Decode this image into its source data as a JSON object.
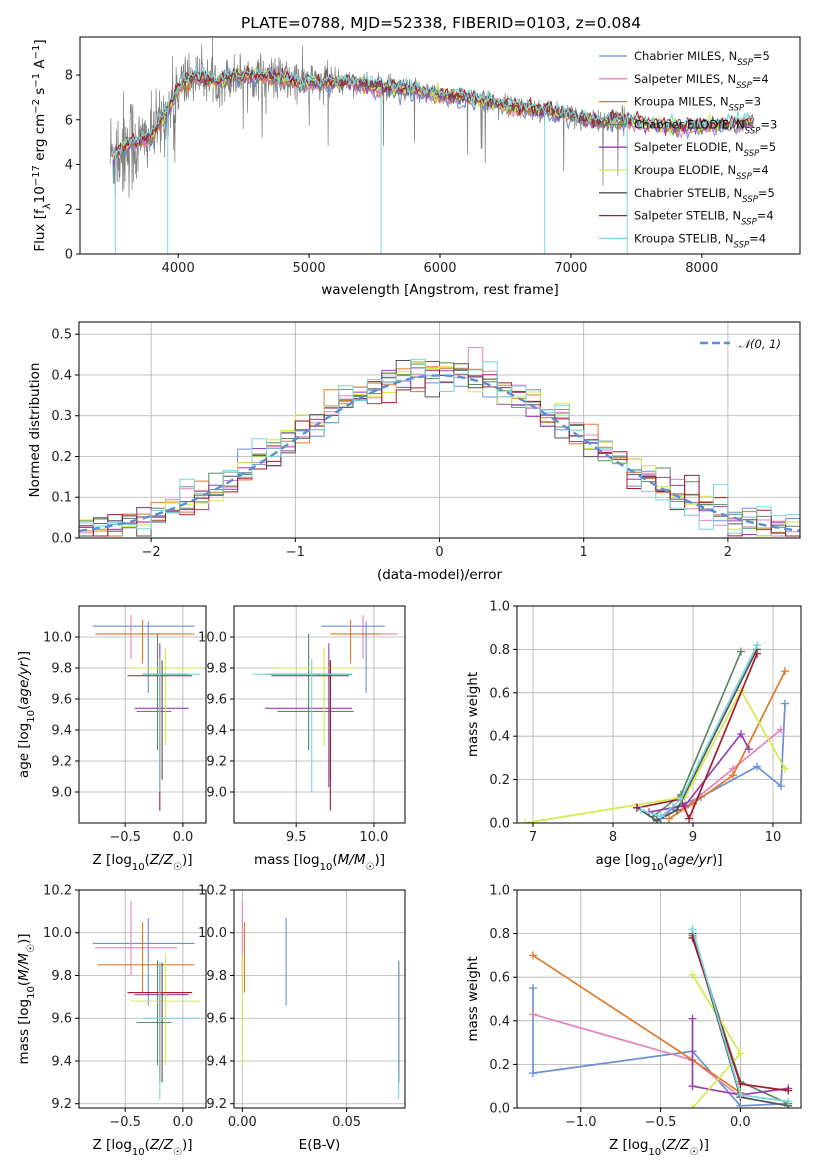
{
  "figure_title": "PLATE=0788, MJD=52338, FIBERID=0103, z=0.084",
  "colors": {
    "Chabrier MILES": "#6b8fd8",
    "Salpeter MILES": "#e285bf",
    "Kroupa MILES": "#e07a2a",
    "Chabrier ELODIE": "#5d8a64",
    "Salpeter ELODIE": "#9a3fb3",
    "Kroupa ELODIE": "#d6e84a",
    "Chabrier STELIB": "#555555",
    "Salpeter STELIB": "#a51d2d",
    "Kroupa STELIB": "#77d6de",
    "data": "#7f7f7f",
    "normal": "#5b8fd4"
  },
  "chart_data": [
    {
      "name": "spectrum",
      "type": "line",
      "xlabel": "wavelength [Angstrom, rest frame]",
      "ylabel": "Flux [f_λ 10^-17 erg cm^-2 s^-1 A^-1]",
      "xlim": [
        3250,
        8750
      ],
      "ylim": [
        0,
        9.7
      ],
      "xticks": [
        "4000",
        "5000",
        "6000",
        "7000",
        "8000"
      ],
      "yticks": [
        "0",
        "2",
        "4",
        "6",
        "8"
      ],
      "legend_position": "top-right",
      "legend": [
        {
          "key": "Chabrier MILES",
          "label": "Chabrier MILES, N",
          "sub": "SSP",
          "eq": "=5"
        },
        {
          "key": "Salpeter MILES",
          "label": "Salpeter MILES, N",
          "sub": "SSP",
          "eq": "=4"
        },
        {
          "key": "Kroupa MILES",
          "label": "Kroupa MILES, N",
          "sub": "SSP",
          "eq": "=3"
        },
        {
          "key": "Chabrier ELODIE",
          "label": "Chabrier ELODIE, N",
          "sub": "SSP",
          "eq": "=3"
        },
        {
          "key": "Salpeter ELODIE",
          "label": "Salpeter ELODIE, N",
          "sub": "SSP",
          "eq": "=5"
        },
        {
          "key": "Kroupa ELODIE",
          "label": "Kroupa ELODIE, N",
          "sub": "SSP",
          "eq": "=4"
        },
        {
          "key": "Chabrier STELIB",
          "label": "Chabrier STELIB, N",
          "sub": "SSP",
          "eq": "=5"
        },
        {
          "key": "Salpeter STELIB",
          "label": "Salpeter STELIB, N",
          "sub": "SSP",
          "eq": "=4"
        },
        {
          "key": "Kroupa STELIB",
          "label": "Kroupa STELIB, N",
          "sub": "SSP",
          "eq": "=4"
        }
      ],
      "continuum": [
        [
          3500,
          4.4
        ],
        [
          3600,
          4.9
        ],
        [
          3700,
          5.0
        ],
        [
          3800,
          5.3
        ],
        [
          3900,
          6.2
        ],
        [
          4000,
          7.4
        ],
        [
          4100,
          7.9
        ],
        [
          4200,
          7.9
        ],
        [
          4300,
          7.7
        ],
        [
          4400,
          7.9
        ],
        [
          4500,
          8.0
        ],
        [
          4700,
          7.9
        ],
        [
          4900,
          7.7
        ],
        [
          5100,
          7.6
        ],
        [
          5300,
          7.7
        ],
        [
          5500,
          7.5
        ],
        [
          5800,
          7.3
        ],
        [
          6000,
          7.1
        ],
        [
          6300,
          6.9
        ],
        [
          6500,
          6.6
        ],
        [
          6800,
          6.4
        ],
        [
          7000,
          6.2
        ],
        [
          7200,
          5.9
        ],
        [
          7400,
          6.0
        ],
        [
          7600,
          5.8
        ],
        [
          7800,
          5.7
        ],
        [
          8000,
          5.7
        ],
        [
          8200,
          5.8
        ],
        [
          8400,
          5.9
        ]
      ]
    },
    {
      "name": "residuals",
      "type": "step",
      "xlabel": "(data-model)/error",
      "ylabel": "Normed distribution",
      "xlim": [
        -2.5,
        2.5
      ],
      "ylim": [
        0,
        0.53
      ],
      "xticks": [
        "−2",
        "−1",
        "0",
        "1",
        "2"
      ],
      "yticks": [
        "0.0",
        "0.1",
        "0.2",
        "0.3",
        "0.4",
        "0.5"
      ],
      "legend_position": "top-right",
      "normal_label": "𝒩(0, 1)",
      "bin_width": 0.1
    },
    {
      "name": "age-vs-Z",
      "type": "errorbar",
      "xlabel": "Z [log10(Z/Z☉)]",
      "ylabel": "age [log10(age/yr)]",
      "xlim": [
        -0.9,
        0.2
      ],
      "ylim": [
        8.8,
        10.2
      ],
      "xticks": [
        "−0.5",
        "0.0"
      ],
      "yticks": [
        "9.0",
        "9.2",
        "9.4",
        "9.6",
        "9.8",
        "10.0"
      ]
    },
    {
      "name": "age-vs-mass",
      "type": "errorbar",
      "xlabel": "mass [log10(M/M☉)]",
      "xlim": [
        9.1,
        10.2
      ],
      "ylim": [
        8.8,
        10.2
      ],
      "xticks": [
        "9.5",
        "10.0"
      ],
      "yticks": [
        "9.0",
        "9.2",
        "9.4",
        "9.6",
        "9.8",
        "10.0"
      ]
    },
    {
      "name": "mass-weight-vs-age",
      "type": "line",
      "xlabel": "age [log10(age/yr)]",
      "ylabel": "mass weight",
      "xlim": [
        6.8,
        10.35
      ],
      "ylim": [
        0,
        1.0
      ],
      "xticks": [
        "7",
        "8",
        "9",
        "10"
      ],
      "yticks": [
        "0.0",
        "0.2",
        "0.4",
        "0.6",
        "0.8",
        "1.0"
      ]
    },
    {
      "name": "mass-vs-Z",
      "type": "errorbar",
      "xlabel": "Z [log10(Z/Z☉)]",
      "ylabel": "mass [log10(M/M☉)]",
      "xlim": [
        -0.9,
        0.2
      ],
      "ylim": [
        9.18,
        10.2
      ],
      "xticks": [
        "−0.5",
        "0.0"
      ],
      "yticks": [
        "9.2",
        "9.4",
        "9.6",
        "9.8",
        "10.0",
        "10.2"
      ]
    },
    {
      "name": "mass-vs-EBV",
      "type": "errorbar",
      "xlabel": "E(B-V)",
      "xlim": [
        -0.004,
        0.078
      ],
      "ylim": [
        9.18,
        10.2
      ],
      "xticks": [
        "0.00",
        "0.05"
      ],
      "yticks": [
        "9.2",
        "9.4",
        "9.6",
        "9.8",
        "10.0",
        "10.2"
      ]
    },
    {
      "name": "mass-weight-vs-Z",
      "type": "line",
      "xlabel": "Z [log10(Z/Z☉)]",
      "ylabel": "mass weight",
      "xlim": [
        -1.4,
        0.38
      ],
      "ylim": [
        0,
        1.0
      ],
      "xticks": [
        "−1.0",
        "−0.5",
        "0.0"
      ],
      "yticks": [
        "0.0",
        "0.2",
        "0.4",
        "0.6",
        "0.8",
        "1.0"
      ]
    }
  ],
  "fits": [
    {
      "key": "Chabrier MILES",
      "Z": -0.3,
      "Zlo": -0.78,
      "Zhi": 0.1,
      "age": 10.07,
      "ageLo": 9.64,
      "ageHi": 10.1,
      "mass": 9.95,
      "massLo": 9.66,
      "massHi": 10.07,
      "mass2": 10.07,
      "ebv": 0.021,
      "age_pts": [
        [
          8.6,
          0.02
        ],
        [
          8.75,
          0.07
        ],
        [
          9.1,
          0.12
        ],
        [
          9.8,
          0.26
        ],
        [
          10.1,
          0.17
        ],
        [
          10.15,
          0.55
        ]
      ],
      "Z_pts": [
        [
          -1.3,
          0.55
        ],
        [
          -1.3,
          0.16
        ],
        [
          -0.3,
          0.26
        ],
        [
          0.0,
          0.01
        ],
        [
          0.3,
          0.02
        ]
      ]
    },
    {
      "key": "Salpeter MILES",
      "Z": -0.45,
      "Zlo": -0.76,
      "Zhi": -0.05,
      "age": 10.02,
      "ageLo": 9.86,
      "ageHi": 10.14,
      "mass": 9.93,
      "massLo": 9.8,
      "massHi": 10.15,
      "mass2": 10.02,
      "ebv": 0.0,
      "age_pts": [
        [
          8.6,
          0.03
        ],
        [
          8.9,
          0.07
        ],
        [
          9.5,
          0.25
        ],
        [
          10.1,
          0.43
        ]
      ],
      "Z_pts": [
        [
          -1.3,
          0.43
        ],
        [
          -0.3,
          0.22
        ],
        [
          0.0,
          0.05
        ]
      ]
    },
    {
      "key": "Kroupa MILES",
      "Z": -0.35,
      "Zlo": -0.74,
      "Zhi": 0.1,
      "age": 10.02,
      "ageLo": 9.83,
      "ageHi": 10.11,
      "mass": 9.85,
      "massLo": 9.72,
      "massHi": 10.05,
      "mass2": 10.02,
      "ebv": 0.001,
      "age_pts": [
        [
          8.7,
          0.02
        ],
        [
          9.0,
          0.09
        ],
        [
          9.5,
          0.22
        ],
        [
          10.15,
          0.7
        ]
      ],
      "Z_pts": [
        [
          -1.3,
          0.7
        ],
        [
          -0.3,
          0.22
        ],
        [
          0.0,
          0.07
        ]
      ]
    },
    {
      "key": "Chabrier ELODIE",
      "Z": -0.22,
      "Zlo": -0.4,
      "Zhi": -0.1,
      "age": 9.52,
      "ageLo": 9.27,
      "ageHi": 10.02,
      "mass": 9.58,
      "massLo": 9.38,
      "massHi": 9.87,
      "mass2": 9.52,
      "ebv": 0.075,
      "age_pts": [
        [
          8.5,
          0.03
        ],
        [
          8.85,
          0.13
        ],
        [
          9.6,
          0.79
        ]
      ],
      "Z_pts": [
        [
          -0.3,
          0.79
        ],
        [
          0.0,
          0.12
        ],
        [
          0.3,
          0.02
        ]
      ]
    },
    {
      "key": "Salpeter ELODIE",
      "Z": -0.2,
      "Zlo": -0.42,
      "Zhi": 0.05,
      "age": 9.54,
      "ageLo": 9.03,
      "ageHi": 9.96,
      "mass": 9.71,
      "massLo": 9.3,
      "massHi": 9.86,
      "mass2": 9.54,
      "ebv": 0.075,
      "age_pts": [
        [
          8.45,
          0.05
        ],
        [
          8.9,
          0.08
        ],
        [
          9.6,
          0.41
        ],
        [
          9.7,
          0.34
        ]
      ],
      "Z_pts": [
        [
          -0.3,
          0.41
        ],
        [
          -0.3,
          0.1
        ],
        [
          0.0,
          0.06
        ],
        [
          0.3,
          0.09
        ]
      ]
    },
    {
      "key": "Kroupa ELODIE",
      "Z": -0.15,
      "Zlo": -0.45,
      "Zhi": 0.15,
      "age": 9.8,
      "ageLo": 9.3,
      "ageHi": 9.93,
      "mass": 9.68,
      "massLo": 9.38,
      "massHi": 9.9,
      "mass2": 9.8,
      "ebv": 0.0,
      "age_pts": [
        [
          6.9,
          0.0
        ],
        [
          8.9,
          0.12
        ],
        [
          9.6,
          0.61
        ],
        [
          10.15,
          0.25
        ]
      ],
      "Z_pts": [
        [
          -0.3,
          0.61
        ],
        [
          0.0,
          0.25
        ],
        [
          -0.3,
          0.0
        ]
      ]
    },
    {
      "key": "Chabrier STELIB",
      "Z": -0.18,
      "Zlo": -0.35,
      "Zhi": 0.05,
      "age": 9.76,
      "ageLo": 9.08,
      "ageHi": 9.85,
      "mass": 9.72,
      "massLo": 9.3,
      "massHi": 9.86,
      "mass2": 9.76,
      "ebv": 0.075,
      "age_pts": [
        [
          8.3,
          0.07
        ],
        [
          8.55,
          0.01
        ],
        [
          8.8,
          0.06
        ],
        [
          9.8,
          0.8
        ]
      ],
      "Z_pts": [
        [
          -0.3,
          0.8
        ],
        [
          0.0,
          0.05
        ],
        [
          0.3,
          0.01
        ]
      ]
    },
    {
      "key": "Salpeter STELIB",
      "Z": -0.2,
      "Zlo": -0.48,
      "Zhi": 0.08,
      "age": 9.75,
      "ageLo": 8.88,
      "ageHi": 9.85,
      "mass": 9.72,
      "massLo": 9.34,
      "massHi": 9.84,
      "mass2": 9.75,
      "ebv": 0.075,
      "age_pts": [
        [
          8.3,
          0.07
        ],
        [
          8.85,
          0.11
        ],
        [
          8.95,
          0.02
        ],
        [
          9.8,
          0.78
        ]
      ],
      "Z_pts": [
        [
          -0.3,
          0.78
        ],
        [
          0.0,
          0.11
        ],
        [
          0.3,
          0.08
        ]
      ]
    },
    {
      "key": "Kroupa STELIB",
      "Z": -0.2,
      "Zlo": -0.35,
      "Zhi": 0.15,
      "age": 9.76,
      "ageLo": 9.0,
      "ageHi": 9.86,
      "mass": 9.6,
      "massLo": 9.22,
      "massHi": 9.86,
      "mass2": 9.6,
      "ebv": 0.075,
      "age_pts": [
        [
          8.35,
          0.06
        ],
        [
          8.6,
          0.03
        ],
        [
          8.85,
          0.11
        ],
        [
          9.8,
          0.82
        ]
      ],
      "Z_pts": [
        [
          -0.3,
          0.82
        ],
        [
          0.0,
          0.06
        ],
        [
          0.3,
          0.03
        ]
      ]
    }
  ]
}
